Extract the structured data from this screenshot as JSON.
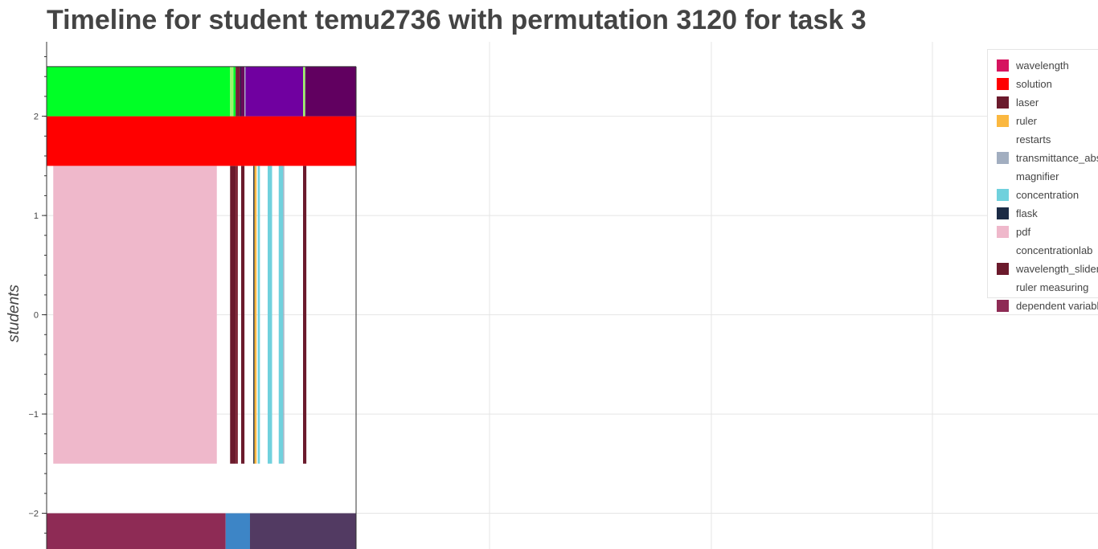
{
  "chart_data": {
    "type": "bar",
    "title": "Timeline for student temu2736 with permutation 3120 for task 3",
    "ylabel": "students",
    "xlabel": "",
    "ylim": [
      -2.36,
      2.75
    ],
    "y_ticks": [
      "2",
      "1",
      "0",
      "−1",
      "−2"
    ],
    "grid": true,
    "legend_position": "top-right",
    "series": [
      {
        "name": "wavelength",
        "color": "#d6145f"
      },
      {
        "name": "solution",
        "color": "#ff0000"
      },
      {
        "name": "laser",
        "color": "#6b1a2c"
      },
      {
        "name": "ruler",
        "color": "#fbb840"
      },
      {
        "name": "restarts",
        "color": "#ffffff"
      },
      {
        "name": "transmittance_abs",
        "color": "#a2aec0"
      },
      {
        "name": "magnifier",
        "color": "#ffffff"
      },
      {
        "name": "concentration",
        "color": "#70d1dd"
      },
      {
        "name": "flask",
        "color": "#1b2b45"
      },
      {
        "name": "pdf",
        "color": "#efb8cb"
      },
      {
        "name": "concentrationlab",
        "color": "#ffffff"
      },
      {
        "name": "wavelength_slider",
        "color": "#6b1a2c"
      },
      {
        "name": "ruler measuring",
        "color": "#ffffff"
      },
      {
        "name": "dependent variable",
        "color": "#8e2b55"
      }
    ],
    "bars": [
      {
        "series": "pdf",
        "x0": 0.03,
        "x1": 0.77,
        "y0": -1.5,
        "y1": 1.5,
        "color": "#efb8cb"
      },
      {
        "series": "laser",
        "x0": 0.83,
        "x1": 0.855,
        "y0": -1.5,
        "y1": 1.5,
        "color": "#6b1a2c"
      },
      {
        "series": "wavelength_slider",
        "x0": 0.855,
        "x1": 0.865,
        "y0": -1.5,
        "y1": 1.5,
        "color": "#7a2030"
      },
      {
        "series": "laser",
        "x0": 0.88,
        "x1": 0.895,
        "y0": -1.5,
        "y1": 1.5,
        "color": "#6b1a2c"
      },
      {
        "series": "flask",
        "x0": 0.935,
        "x1": 0.94,
        "y0": -1.5,
        "y1": 1.5,
        "color": "#1b2b45"
      },
      {
        "series": "ruler",
        "x0": 0.94,
        "x1": 0.95,
        "y0": -1.5,
        "y1": 1.5,
        "color": "#fbb840"
      },
      {
        "series": "concentration",
        "x0": 0.955,
        "x1": 0.965,
        "y0": -1.5,
        "y1": 1.5,
        "color": "#70d1dd"
      },
      {
        "series": "concentration",
        "x0": 1.0,
        "x1": 1.02,
        "y0": -1.5,
        "y1": 1.5,
        "color": "#70d1dd"
      },
      {
        "series": "concentration",
        "x0": 1.05,
        "x1": 1.07,
        "y0": -1.5,
        "y1": 1.5,
        "color": "#70d1dd"
      },
      {
        "series": "transmittance_abs",
        "x0": 1.07,
        "x1": 1.075,
        "y0": -1.5,
        "y1": 1.5,
        "color": "#a2aec0"
      },
      {
        "series": "wavelength_slider",
        "x0": 1.16,
        "x1": 1.175,
        "y0": -1.5,
        "y1": 1.5,
        "color": "#6b1a2c"
      },
      {
        "series": "solution",
        "x0": 0.0,
        "x1": 1.4,
        "y0": 1.5,
        "y1": 2.0,
        "color": "#ff0000"
      },
      {
        "series": "",
        "x0": 0.0,
        "x1": 0.83,
        "y0": 2.0,
        "y1": 2.5,
        "color": "#00ff26"
      },
      {
        "series": "",
        "x0": 0.83,
        "x1": 0.845,
        "y0": 2.0,
        "y1": 2.5,
        "color": "#9ef26e"
      },
      {
        "series": "",
        "x0": 0.845,
        "x1": 0.855,
        "y0": 2.0,
        "y1": 2.5,
        "color": "#00ff26"
      },
      {
        "series": "",
        "x0": 0.855,
        "x1": 0.875,
        "y0": 2.0,
        "y1": 2.5,
        "color": "#7a1a3a"
      },
      {
        "series": "",
        "x0": 0.875,
        "x1": 0.88,
        "y0": 2.0,
        "y1": 2.5,
        "color": "#2a1a4a"
      },
      {
        "series": "",
        "x0": 0.88,
        "x1": 0.895,
        "y0": 2.0,
        "y1": 2.5,
        "color": "#6a0a5a"
      },
      {
        "series": "",
        "x0": 0.895,
        "x1": 0.9,
        "y0": 2.0,
        "y1": 2.5,
        "color": "#a2aec0"
      },
      {
        "series": "",
        "x0": 0.9,
        "x1": 1.16,
        "y0": 2.0,
        "y1": 2.5,
        "color": "#7000a0"
      },
      {
        "series": "",
        "x0": 1.16,
        "x1": 1.17,
        "y0": 2.0,
        "y1": 2.5,
        "color": "#9ef26e"
      },
      {
        "series": "",
        "x0": 1.17,
        "x1": 1.4,
        "y0": 2.0,
        "y1": 2.5,
        "color": "#610060"
      },
      {
        "series": "dependent variable",
        "x0": 0.0,
        "x1": 0.81,
        "y0": -2.4,
        "y1": -2.0,
        "color": "#8e2b55"
      },
      {
        "series": "",
        "x0": 0.81,
        "x1": 0.92,
        "y0": -2.4,
        "y1": -2.0,
        "color": "#3d85c6"
      },
      {
        "series": "",
        "x0": 0.92,
        "x1": 1.4,
        "y0": -2.4,
        "y1": -2.0,
        "color": "#523a62"
      }
    ]
  }
}
